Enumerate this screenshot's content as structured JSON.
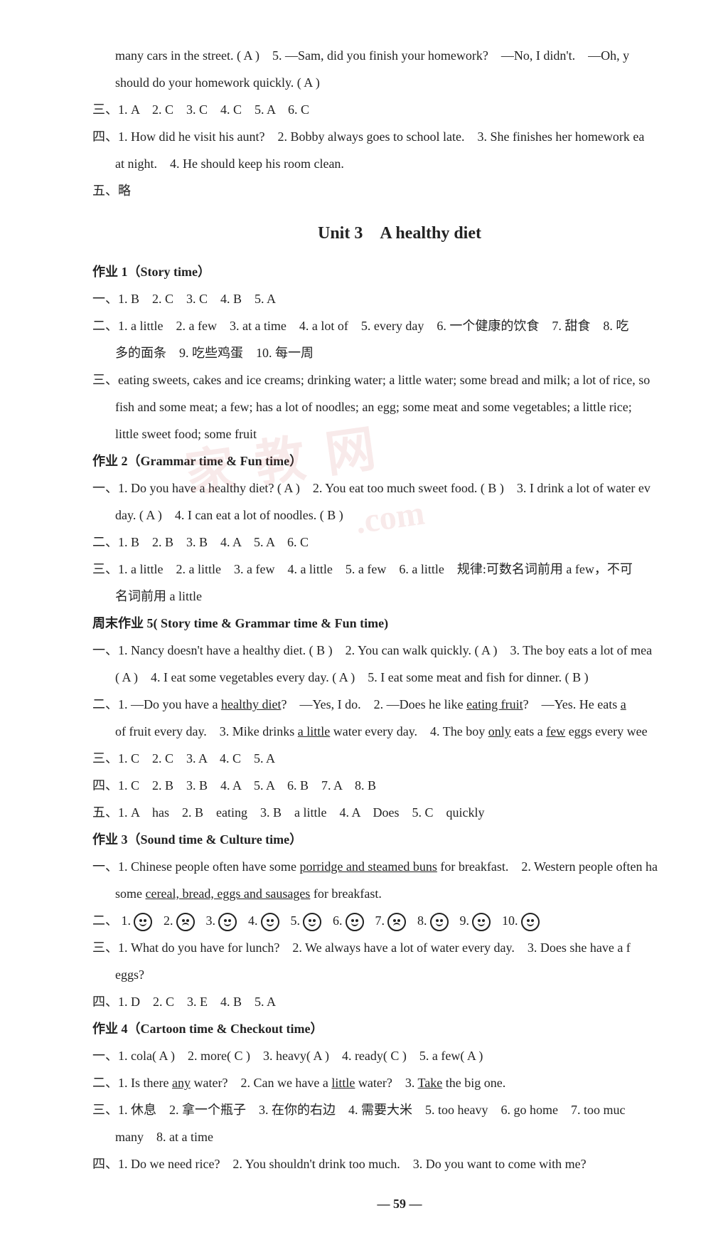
{
  "intro": {
    "l1": "many cars in the street. ( A )　5. —Sam, did you finish your homework?　—No, I didn't.　—Oh, y",
    "l2": "should do your homework quickly. ( A )"
  },
  "sec3": "三、1. A　2. C　3. C　4. C　5. A　6. C",
  "sec4": {
    "l1": "四、1. How did he visit his aunt?　2. Bobby always goes to school late.　3. She finishes her homework ea",
    "l2": "at night.　4. He should keep his room clean."
  },
  "sec5": "五、略",
  "unitTitle": "Unit 3　A healthy diet",
  "hw1": {
    "title": "作业 1（Story time）",
    "l1": "一、1. B　2. C　3. C　4. B　5. A",
    "l2": "二、1. a little　2. a few　3. at a time　4. a lot of　5. every day　6. 一个健康的饮食　7. 甜食　8. 吃",
    "l2b": "多的面条　9. 吃些鸡蛋　10. 每一周",
    "l3": "三、eating sweets, cakes and ice creams; drinking water; a little water; some bread and milk; a lot of rice, so",
    "l3b": "fish and some meat; a few; has a lot of noodles; an egg; some meat and some vegetables; a little rice;",
    "l3c": "little sweet food; some fruit"
  },
  "hw2": {
    "title": "作业 2（Grammar time & Fun time）",
    "l1": "一、1. Do you have a healthy diet? ( A )　2. You eat too much sweet food. ( B )　3. I drink a lot of water ev",
    "l1b": "day. ( A )　4. I can eat a lot of noodles. ( B )",
    "l2": "二、1. B　2. B　3. B　4. A　5. A　6. C",
    "l3": "三、1. a little　2. a little　3. a few　4. a little　5. a few　6. a little　规律:可数名词前用 a few，不可",
    "l3b": "名词前用 a little"
  },
  "wk5": {
    "title": "周末作业 5( Story time & Grammar time & Fun time)",
    "l1": "一、1. Nancy doesn't have a healthy diet. ( B )　2. You can walk quickly. ( A )　3. The boy eats a lot of mea",
    "l1b": "( A )　4. I eat some vegetables every day. ( A )　5. I eat some meat and fish for dinner. ( B )",
    "l2pre": "二、1. —Do you have a ",
    "l2heal": "healthy diet",
    "l2mid": "?　—Yes, I do.　2. —Does he like ",
    "l2eat": "eating fruit",
    "l2mid2": "?　—Yes. He eats ",
    "l2a": "a",
    "l2b_pre": "of fruit every day.　3. Mike drinks ",
    "l2b_u1": "a little",
    "l2b_mid": " water every day.　4. The boy ",
    "l2b_u2": "only",
    "l2b_mid2": " eats a ",
    "l2b_u3": "few",
    "l2b_end": " eggs every wee",
    "l3": "三、1. C　2. C　3. A　4. C　5. A",
    "l4": "四、1. C　2. B　3. B　4. A　5. A　6. B　7. A　8. B",
    "l5": "五、1. A　has　2. B　eating　3. B　a little　4. A　Does　5. C　quickly"
  },
  "hw3": {
    "title": "作业 3（Sound time & Culture time）",
    "l1pre": "一、1. Chinese people often have some ",
    "l1u": "porridge and steamed buns",
    "l1post": " for breakfast.　2. Western people often ha",
    "l1b_pre": "some ",
    "l1b_u": "cereal, bread, eggs and sausages",
    "l1b_post": " for breakfast.",
    "faces": {
      "label": "二、",
      "items": [
        {
          "n": "1.",
          "mood": "happy"
        },
        {
          "n": "2.",
          "mood": "sad"
        },
        {
          "n": "3.",
          "mood": "happy"
        },
        {
          "n": "4.",
          "mood": "happy"
        },
        {
          "n": "5.",
          "mood": "happy"
        },
        {
          "n": "6.",
          "mood": "happy"
        },
        {
          "n": "7.",
          "mood": "sad"
        },
        {
          "n": "8.",
          "mood": "happy"
        },
        {
          "n": "9.",
          "mood": "happy"
        },
        {
          "n": "10.",
          "mood": "happy"
        }
      ]
    },
    "l3": "三、1. What do you have for lunch?　2. We always have a lot of water every day.　3. Does she have a f",
    "l3b": "eggs?",
    "l4": "四、1. D　2. C　3. E　4. B　5. A"
  },
  "hw4": {
    "title": "作业 4（Cartoon time & Checkout time）",
    "l1": "一、1. cola( A )　2. more( C )　3. heavy( A )　4. ready( C )　5. a few( A )",
    "l2pre": "二、1. Is there ",
    "l2u1": "any",
    "l2mid1": " water?　2. Can we have a ",
    "l2u2": "little",
    "l2mid2": " water?　3. ",
    "l2u3": "Take",
    "l2end": " the big one.",
    "l3": "三、1. 休息　2. 拿一个瓶子　3. 在你的右边　4. 需要大米　5. too heavy　6. go home　7. too muc",
    "l3b": "many　8. at a time",
    "l4": "四、1. Do we need rice?　2. You shouldn't drink too much.　3. Do you want to come with me?"
  },
  "pageNum": "— 59 —",
  "watermark": "家 教 网",
  "watermark2": ".com"
}
